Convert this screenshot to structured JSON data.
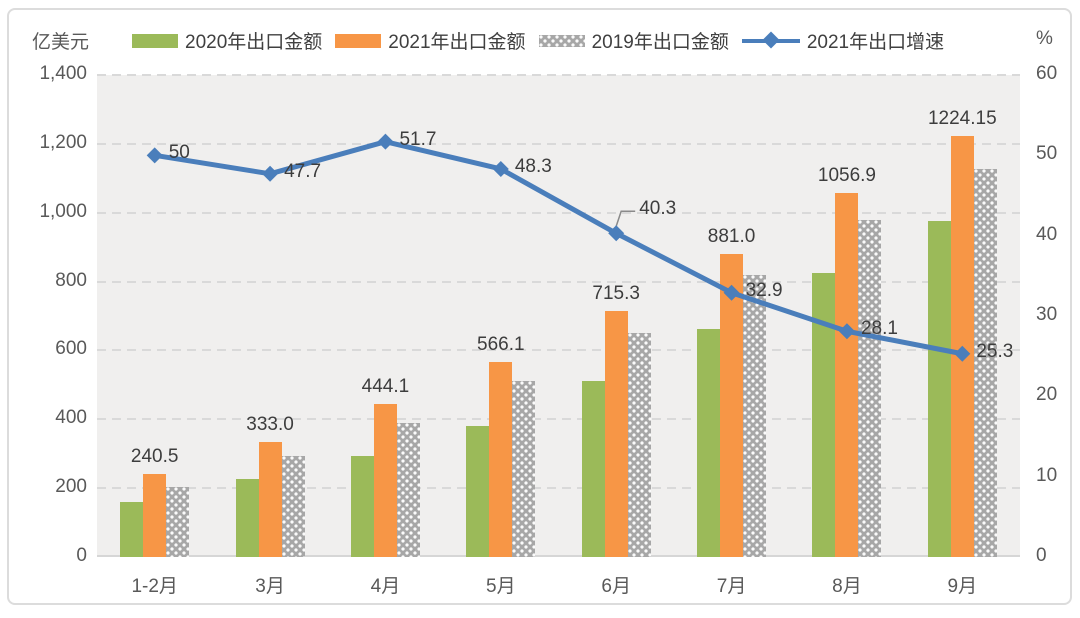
{
  "chart_data": {
    "type": "combo-bar-line",
    "categories": [
      "1-2月",
      "3月",
      "4月",
      "5月",
      "6月",
      "7月",
      "8月",
      "9月"
    ],
    "left_axis": {
      "title": "亿美元",
      "min": 0,
      "max": 1400,
      "tick_step": 200,
      "ticks": [
        {
          "label": "1,400",
          "value": 1400
        },
        {
          "label": "1,200",
          "value": 1200
        },
        {
          "label": "1,000",
          "value": 1000
        },
        {
          "label": "800",
          "value": 800
        },
        {
          "label": "600",
          "value": 600
        },
        {
          "label": "400",
          "value": 400
        },
        {
          "label": "200",
          "value": 200
        },
        {
          "label": "0",
          "value": 0
        }
      ]
    },
    "right_axis": {
      "title": "%",
      "min": 0,
      "max": 60,
      "tick_step": 10,
      "ticks": [
        {
          "label": "60",
          "value": 60
        },
        {
          "label": "50",
          "value": 50
        },
        {
          "label": "40",
          "value": 40
        },
        {
          "label": "30",
          "value": 30
        },
        {
          "label": "20",
          "value": 20
        },
        {
          "label": "10",
          "value": 10
        },
        {
          "label": "0",
          "value": 0
        }
      ]
    },
    "bar_series": [
      {
        "name": "2020年出口金额",
        "color": "#9bba59",
        "pattern": "solid",
        "values": [
          160.3,
          225.5,
          292.8,
          381.7,
          509.8,
          662.9,
          825.1,
          977.0
        ]
      },
      {
        "name": "2021年出口金额",
        "color": "#f79646",
        "pattern": "solid",
        "values": [
          240.5,
          333.0,
          444.1,
          566.1,
          715.3,
          881.0,
          1056.9,
          1224.15
        ],
        "labels": [
          "240.5",
          "333.0",
          "444.1",
          "566.1",
          "715.3",
          "881.0",
          "1056.9",
          "1224.15"
        ]
      },
      {
        "name": "2019年出口金额",
        "color": "#a7a7a7",
        "pattern": "dots",
        "values": [
          204,
          292,
          390,
          512,
          652,
          820,
          978,
          1126
        ]
      }
    ],
    "line_series": {
      "name": "2021年出口增速",
      "color": "#4a7ebb",
      "axis": "right",
      "values": [
        50,
        47.7,
        51.7,
        48.3,
        40.3,
        32.9,
        28.1,
        25.3
      ],
      "labels": [
        "50",
        "47.7",
        "51.7",
        "48.3",
        "40.3",
        "32.9",
        "28.1",
        "25.3"
      ],
      "callout_index": 4
    },
    "layout": {
      "grid": "dashed-horizontal",
      "legend_position": "top",
      "plot_background": "#f0efee"
    }
  }
}
